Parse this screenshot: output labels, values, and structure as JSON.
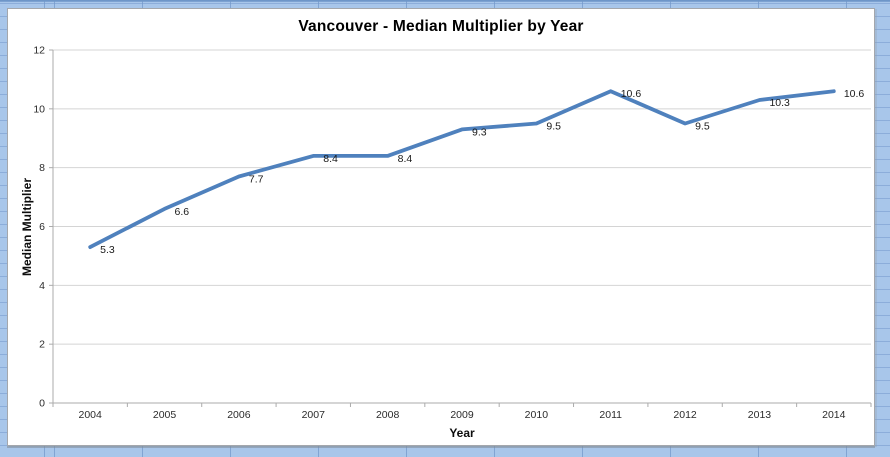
{
  "chart_data": {
    "type": "line",
    "title": "Vancouver - Median Multiplier by Year",
    "xlabel": "Year",
    "ylabel": "Median Multiplier",
    "categories": [
      "2004",
      "2005",
      "2006",
      "2007",
      "2008",
      "2009",
      "2010",
      "2011",
      "2012",
      "2013",
      "2014"
    ],
    "series": [
      {
        "name": "Median Multiplier",
        "values": [
          5.3,
          6.6,
          7.7,
          8.4,
          8.4,
          9.3,
          9.5,
          10.6,
          9.5,
          10.3,
          10.6
        ],
        "point_labels": [
          "5.3",
          "6.6",
          "7.7",
          "8.4",
          "8.4",
          "9.3",
          "9.5",
          "10.6",
          "9.5",
          "10.3",
          "10.6"
        ]
      }
    ],
    "ylim": [
      0,
      12
    ],
    "ytick_step": 2,
    "ytick_labels": [
      "0",
      "2",
      "4",
      "6",
      "8",
      "10",
      "12"
    ],
    "grid": "horizontal",
    "legend": "none",
    "data_labels_visible": true,
    "colors": {
      "line": "#4F81BD",
      "gridline": "#D4D4D4",
      "axis": "#ABABAB",
      "tick_text": "#2b2b2b",
      "data_label_text": "#1a1a1a",
      "chart_background": "#FFFFFF",
      "sheet_background": "#A8C6EA"
    }
  }
}
